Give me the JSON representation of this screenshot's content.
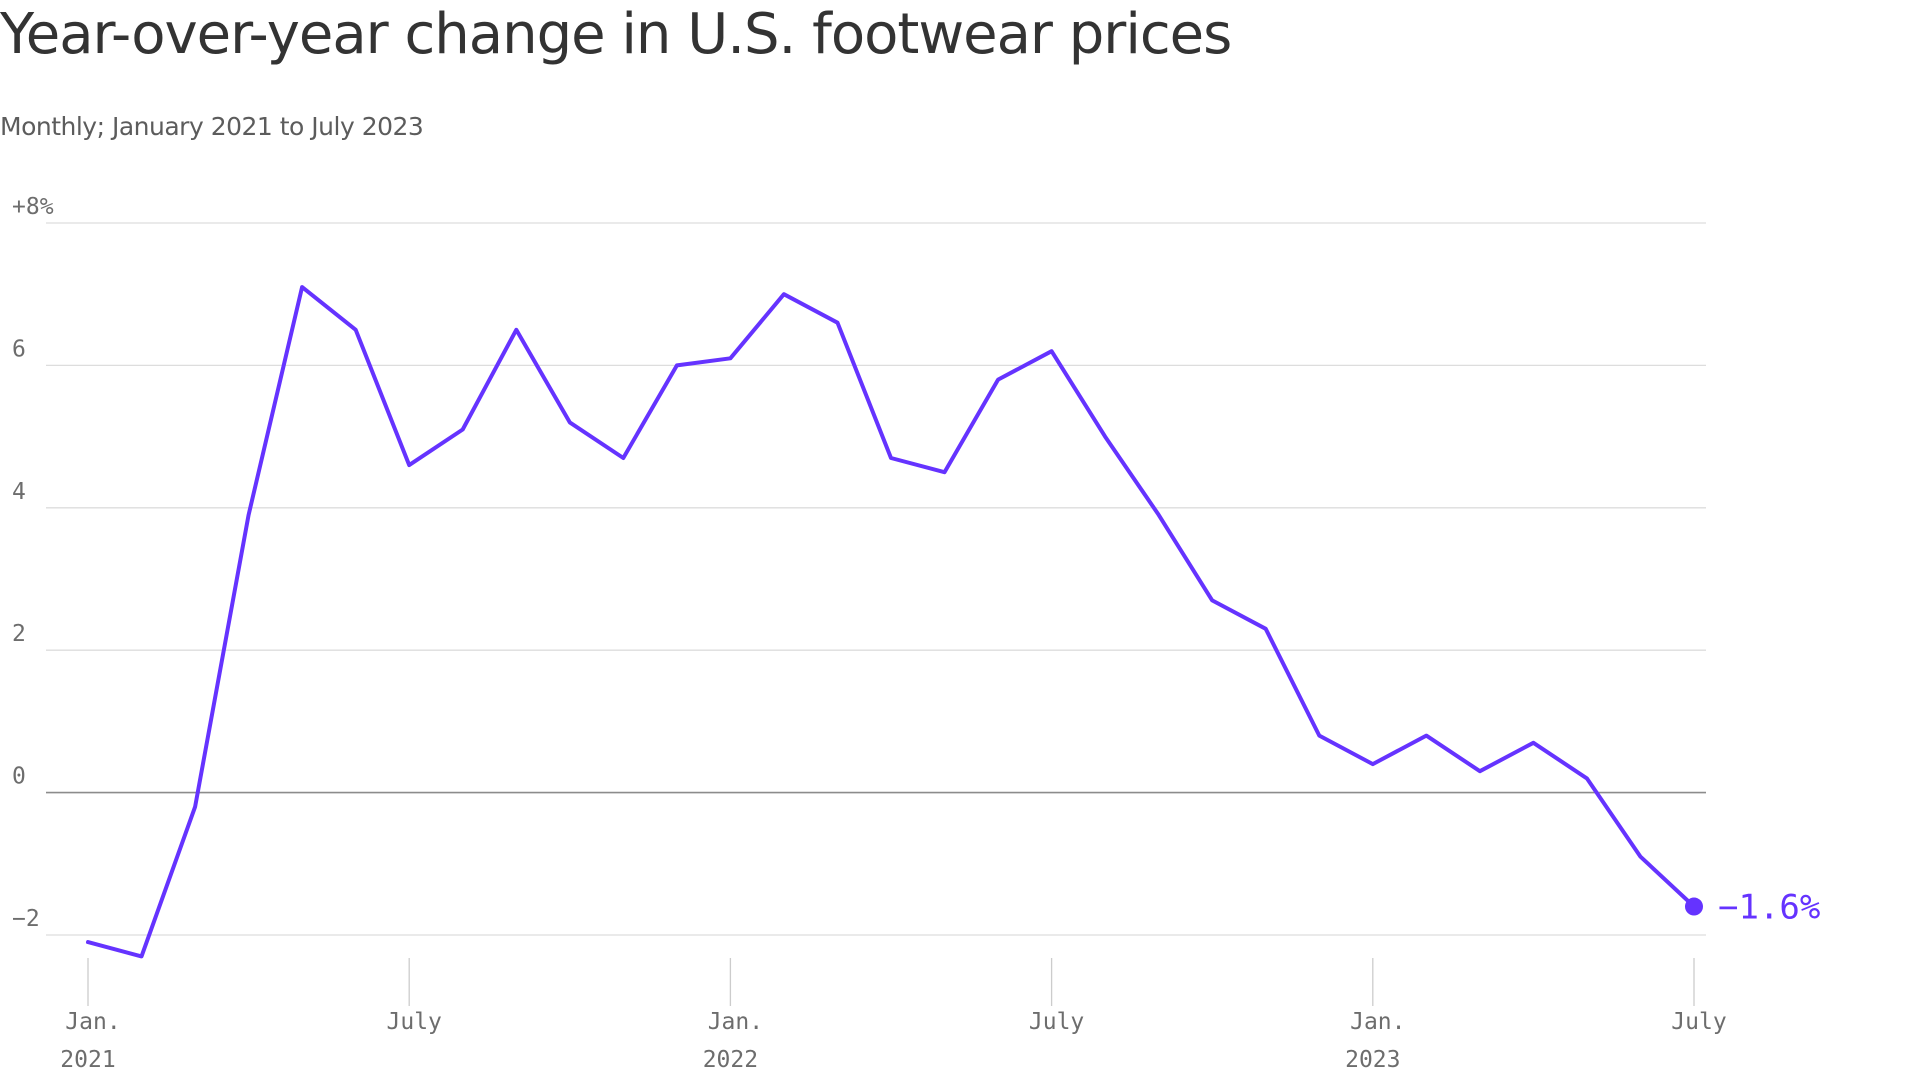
{
  "chart_data": {
    "type": "line",
    "title": "Year-over-year change in U.S. footwear prices",
    "subtitle": "Monthly; January 2021 to July 2023",
    "xlabel": "",
    "ylabel": "",
    "ylim": [
      -2,
      8
    ],
    "y_ticks": [
      {
        "value": 8,
        "label": "+8%"
      },
      {
        "value": 6,
        "label": "6"
      },
      {
        "value": 4,
        "label": "4"
      },
      {
        "value": 2,
        "label": "2"
      },
      {
        "value": 0,
        "label": "0"
      },
      {
        "value": -2,
        "label": "−2"
      }
    ],
    "x_ticks": [
      {
        "date": "2021-01",
        "line1": "Jan.",
        "line2": "2021"
      },
      {
        "date": "2021-07",
        "line1": "July",
        "line2": ""
      },
      {
        "date": "2022-01",
        "line1": "Jan.",
        "line2": "2022"
      },
      {
        "date": "2022-07",
        "line1": "July",
        "line2": ""
      },
      {
        "date": "2023-01",
        "line1": "Jan.",
        "line2": "2023"
      },
      {
        "date": "2023-07",
        "line1": "July",
        "line2": ""
      }
    ],
    "x": [
      "2021-01",
      "2021-02",
      "2021-03",
      "2021-04",
      "2021-05",
      "2021-06",
      "2021-07",
      "2021-08",
      "2021-09",
      "2021-10",
      "2021-11",
      "2021-12",
      "2022-01",
      "2022-02",
      "2022-03",
      "2022-04",
      "2022-05",
      "2022-06",
      "2022-07",
      "2022-08",
      "2022-09",
      "2022-10",
      "2022-11",
      "2022-12",
      "2023-01",
      "2023-02",
      "2023-03",
      "2023-04",
      "2023-05",
      "2023-06",
      "2023-07"
    ],
    "series": [
      {
        "values": [
          -2.1,
          -2.3,
          -0.2,
          3.9,
          7.1,
          6.5,
          4.6,
          5.1,
          6.5,
          5.2,
          4.7,
          6.0,
          6.1,
          7.0,
          6.6,
          4.7,
          4.5,
          5.8,
          6.2,
          5.0,
          3.9,
          2.7,
          2.3,
          0.8,
          0.4,
          0.8,
          0.3,
          0.7,
          0.2,
          -0.9,
          -1.6
        ],
        "color": "#6533ff"
      }
    ],
    "end_label": "−1.6%",
    "grid": true,
    "legend": "none",
    "colors": {
      "line": "#6533ff",
      "grid": "#dddddd",
      "zero_line": "#8c8c8c",
      "tick_mark": "#cccccc"
    }
  }
}
